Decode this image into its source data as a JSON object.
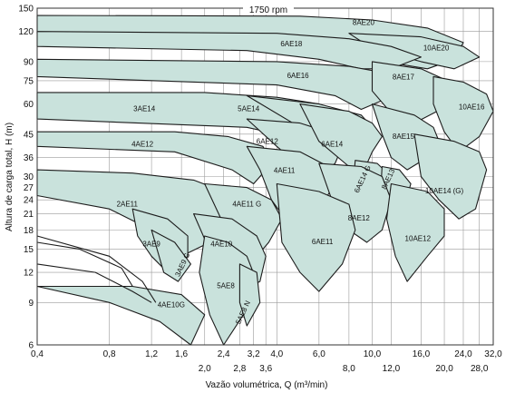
{
  "chart_data": {
    "type": "area",
    "title": "1750 rpm",
    "xlabel": "Vazão volumétrica, Q (m³/min)",
    "ylabel": "Altura de carga total, H (m)",
    "x_scale": "log",
    "y_scale": "log",
    "xlim": [
      0.4,
      32.0
    ],
    "ylim": [
      6,
      150
    ],
    "grid": true,
    "x_ticks_top": [
      "0,4",
      "0,8",
      "1,2",
      "1,6",
      "2,4",
      "3,2",
      "4,0",
      "6,0",
      "10,0",
      "16,0",
      "24,0",
      "32,0"
    ],
    "x_ticks_top_values": [
      0.4,
      0.8,
      1.2,
      1.6,
      2.4,
      3.2,
      4.0,
      6.0,
      10.0,
      16.0,
      24.0,
      32.0
    ],
    "x_ticks_bottom": [
      "2,0",
      "2,8",
      "3,6",
      "8,0",
      "12,0",
      "20,0",
      "28,0"
    ],
    "x_ticks_bottom_values": [
      2.0,
      2.8,
      3.6,
      8.0,
      12.0,
      20.0,
      28.0
    ],
    "y_ticks": [
      "150",
      "120",
      "90",
      "75",
      "60",
      "45",
      "36",
      "30",
      "27",
      "24",
      "21",
      "18",
      "15",
      "12",
      "9",
      "6"
    ],
    "y_tick_values": [
      150,
      120,
      90,
      75,
      60,
      45,
      36,
      30,
      27,
      24,
      21,
      18,
      15,
      12,
      9,
      6
    ],
    "series": [
      {
        "name": "8AE20",
        "label_at": [
          9.2,
          128
        ]
      },
      {
        "name": "10AE20",
        "label_at": [
          18.5,
          100
        ]
      },
      {
        "name": "6AE18",
        "label_at": [
          4.6,
          104
        ]
      },
      {
        "name": "6AE16",
        "label_at": [
          4.9,
          77
        ]
      },
      {
        "name": "8AE17",
        "label_at": [
          13.5,
          76
        ]
      },
      {
        "name": "10AE16",
        "label_at": [
          26.0,
          57
        ]
      },
      {
        "name": "3AE14",
        "label_at": [
          1.12,
          56
        ]
      },
      {
        "name": "5AE14",
        "label_at": [
          3.05,
          56
        ]
      },
      {
        "name": "4AE12",
        "label_at": [
          1.1,
          40
        ]
      },
      {
        "name": "6AE12",
        "label_at": [
          3.65,
          41
        ]
      },
      {
        "name": "6AE14",
        "label_at": [
          6.8,
          40
        ]
      },
      {
        "name": "8AE15",
        "label_at": [
          13.5,
          43
        ]
      },
      {
        "name": "4AE11",
        "label_at": [
          4.3,
          31
        ]
      },
      {
        "name": "6AE14 G",
        "label_at": [
          9.3,
          29
        ]
      },
      {
        "name": "8AE13",
        "label_at": [
          11.9,
          29
        ]
      },
      {
        "name": "10AE14 (G)",
        "label_at": [
          20.0,
          25.5
        ]
      },
      {
        "name": "2AE11",
        "label_at": [
          0.95,
          22.5
        ]
      },
      {
        "name": "4AE11 G",
        "label_at": [
          3.0,
          22.5
        ]
      },
      {
        "name": "8AE12",
        "label_at": [
          8.8,
          19.7
        ]
      },
      {
        "name": "3AE9",
        "label_at": [
          1.2,
          15.4
        ]
      },
      {
        "name": "4AE10",
        "label_at": [
          2.35,
          15.4
        ]
      },
      {
        "name": "6AE11",
        "label_at": [
          6.2,
          15.7
        ]
      },
      {
        "name": "10AE12",
        "label_at": [
          15.5,
          16.2
        ]
      },
      {
        "name": "3AE9 G",
        "label_at": [
          1.65,
          12.8
        ]
      },
      {
        "name": "5AE8",
        "label_at": [
          2.45,
          10.3
        ]
      },
      {
        "name": "4AE10G",
        "label_at": [
          1.45,
          8.6
        ]
      },
      {
        "name": "5AE8 N",
        "label_at": [
          2.95,
          8.1
        ]
      }
    ]
  }
}
